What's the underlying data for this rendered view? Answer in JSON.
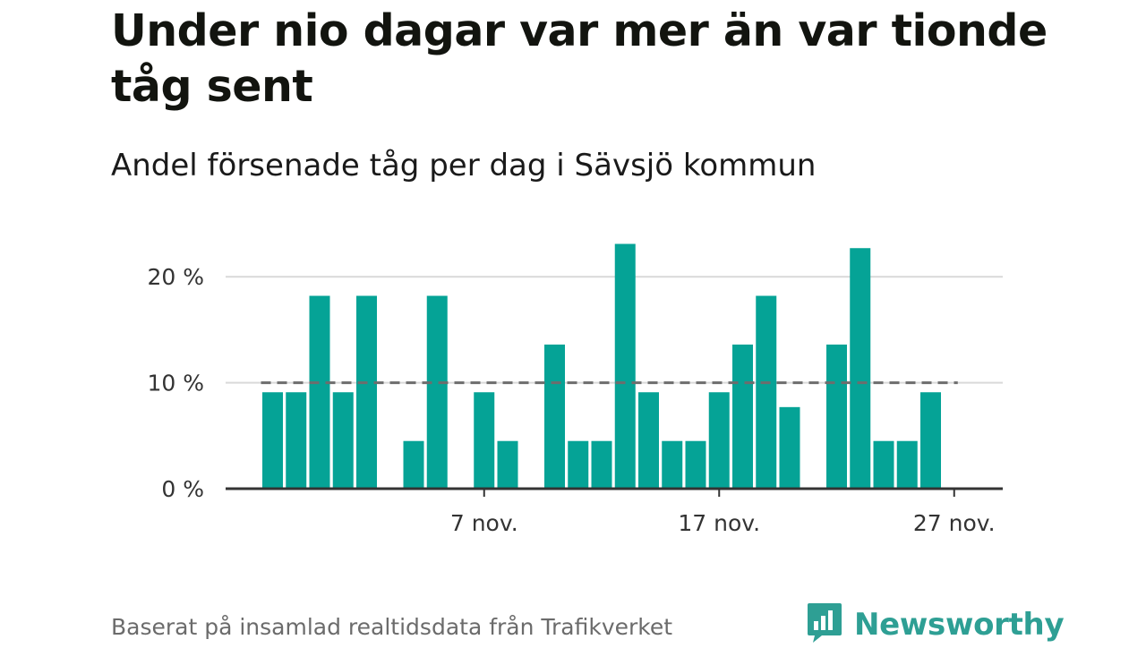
{
  "title": "Under nio dagar var mer än var tionde tåg sent",
  "subtitle": "Andel försenade tåg per dag i Sävsjö kommun",
  "footer": "Baserat på insamlad realtidsdata från Trafikverket",
  "brand": {
    "name": "Newsworthy",
    "icon": "bar-chart-speech-bubble-icon"
  },
  "colors": {
    "bar": "#05a396",
    "grid": "#d9d9d9",
    "axis": "#333333",
    "reference": "#6d6d6d",
    "brand": "#2e9f94"
  },
  "chart_data": {
    "type": "bar",
    "title": "Under nio dagar var mer än var tionde tåg sent",
    "subtitle": "Andel försenade tåg per dag i Sävsjö kommun",
    "xlabel": "",
    "ylabel": "",
    "x": [
      "2023-10-29",
      "2023-10-30",
      "2023-10-31",
      "2023-11-01",
      "2023-11-02",
      "2023-11-03",
      "2023-11-04",
      "2023-11-05",
      "2023-11-06",
      "2023-11-07",
      "2023-11-08",
      "2023-11-09",
      "2023-11-10",
      "2023-11-11",
      "2023-11-12",
      "2023-11-13",
      "2023-11-14",
      "2023-11-15",
      "2023-11-16",
      "2023-11-17",
      "2023-11-18",
      "2023-11-19",
      "2023-11-20",
      "2023-11-21",
      "2023-11-22",
      "2023-11-23",
      "2023-11-24",
      "2023-11-25",
      "2023-11-26",
      "2023-11-27",
      "2023-11-28",
      "2023-11-29",
      "2023-11-30",
      "2023-12-01"
    ],
    "values": [
      9.1,
      9.1,
      18.2,
      9.1,
      18.2,
      null,
      4.5,
      18.2,
      null,
      9.1,
      4.5,
      null,
      13.6,
      4.5,
      4.5,
      23.1,
      9.1,
      4.5,
      4.5,
      9.1,
      13.6,
      18.2,
      7.7,
      null,
      13.6,
      22.7,
      4.5,
      4.5,
      9.1,
      null,
      null,
      null,
      null,
      null
    ],
    "reference_line": 10,
    "ylim": [
      0,
      25
    ],
    "yticks": [
      0,
      10,
      20
    ],
    "ytick_labels": [
      "0 %",
      "10 %",
      "20 %"
    ],
    "xtick_dates": [
      "2023-11-07",
      "2023-11-17",
      "2023-11-27"
    ],
    "xtick_labels": [
      "7 nov.",
      "17 nov.",
      "27 nov."
    ],
    "grid": true
  }
}
